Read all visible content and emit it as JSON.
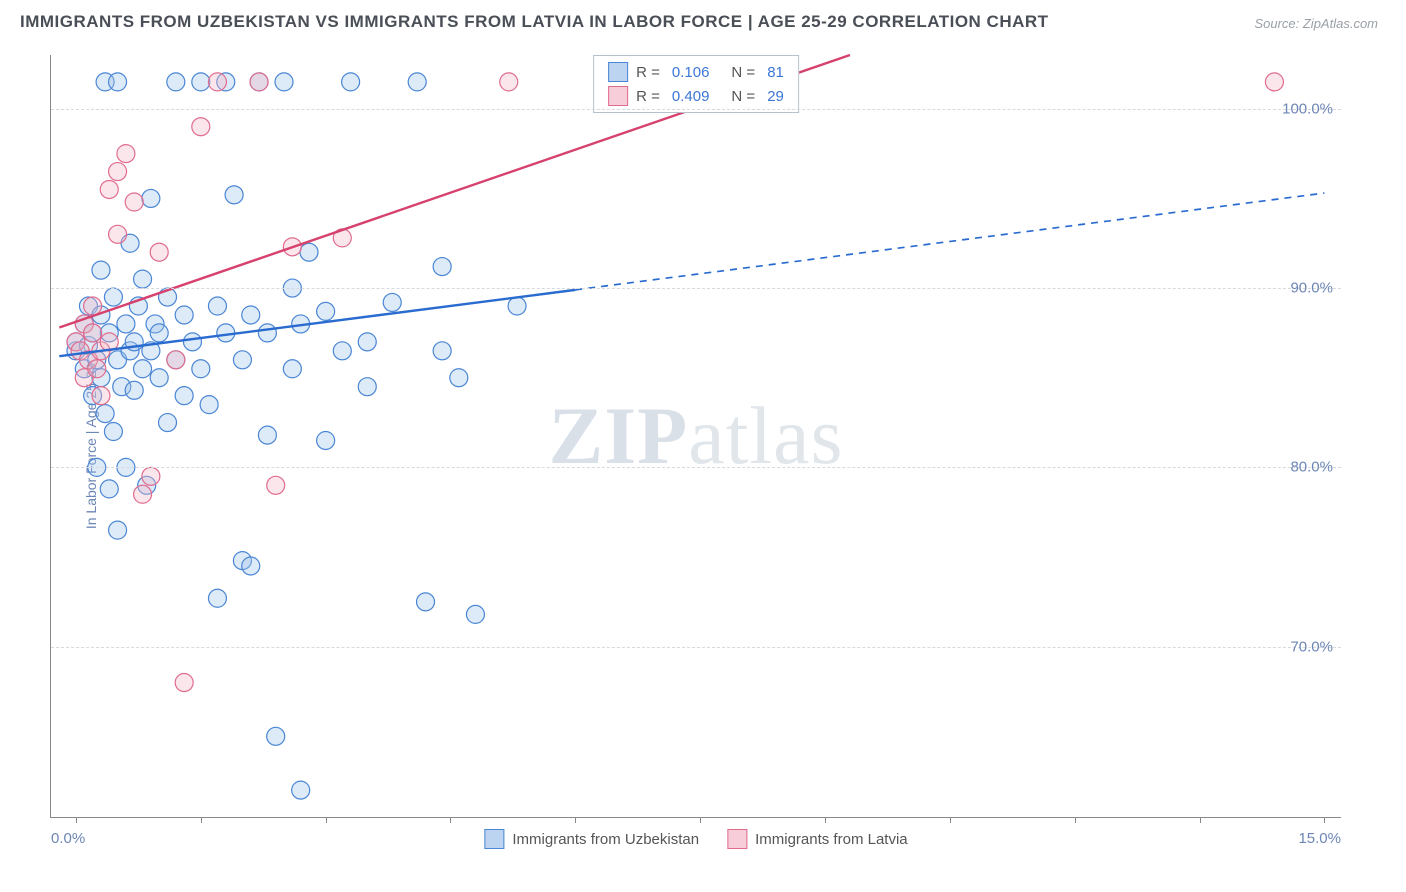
{
  "chart": {
    "type": "scatter",
    "title": "IMMIGRANTS FROM UZBEKISTAN VS IMMIGRANTS FROM LATVIA IN LABOR FORCE | AGE 25-29 CORRELATION CHART",
    "source": "Source: ZipAtlas.com",
    "ylabel": "In Labor Force | Age 25-29",
    "watermark": "ZIPatlas",
    "background_color": "#ffffff",
    "grid_color": "#d7d9dc",
    "axis_color": "#888888",
    "label_color": "#6c86b5",
    "title_color": "#4a4f57",
    "title_fontsize": 17,
    "label_fontsize": 15,
    "xlim": [
      -0.3,
      15.2
    ],
    "ylim": [
      60.5,
      103.0
    ],
    "y_ticks": [
      70.0,
      80.0,
      90.0,
      100.0
    ],
    "y_tick_labels": [
      "70.0%",
      "80.0%",
      "90.0%",
      "100.0%"
    ],
    "x_tick_positions": [
      0.0,
      1.5,
      3.0,
      4.5,
      6.0,
      7.5,
      9.0,
      10.5,
      12.0,
      13.5,
      15.0
    ],
    "x_axis_end_labels": [
      "0.0%",
      "15.0%"
    ],
    "marker_radius": 9,
    "marker_fill_opacity": 0.35,
    "marker_stroke_width": 1.2,
    "line_width": 2.4,
    "series": [
      {
        "name": "Immigrants from Uzbekistan",
        "color_fill": "#9ec2eb",
        "color_stroke": "#4a86d5",
        "line_color": "#2a6bd0",
        "R": "0.106",
        "N": "81",
        "trend": {
          "x1": -0.2,
          "y1": 86.2,
          "x2": 6.0,
          "y2": 89.9,
          "dash_extend_to_x": 15.0,
          "dash_extend_to_y": 95.3
        },
        "points": [
          [
            0.0,
            86.5
          ],
          [
            0.0,
            87.0
          ],
          [
            0.1,
            88.0
          ],
          [
            0.1,
            85.5
          ],
          [
            0.15,
            86.8
          ],
          [
            0.15,
            89.0
          ],
          [
            0.2,
            87.5
          ],
          [
            0.2,
            84.0
          ],
          [
            0.25,
            80.0
          ],
          [
            0.25,
            86.0
          ],
          [
            0.3,
            88.5
          ],
          [
            0.3,
            91.0
          ],
          [
            0.3,
            85.0
          ],
          [
            0.35,
            83.0
          ],
          [
            0.35,
            101.5
          ],
          [
            0.4,
            87.5
          ],
          [
            0.4,
            78.8
          ],
          [
            0.45,
            82.0
          ],
          [
            0.45,
            89.5
          ],
          [
            0.5,
            86.0
          ],
          [
            0.5,
            76.5
          ],
          [
            0.5,
            101.5
          ],
          [
            0.55,
            84.5
          ],
          [
            0.6,
            80.0
          ],
          [
            0.6,
            88.0
          ],
          [
            0.65,
            86.5
          ],
          [
            0.65,
            92.5
          ],
          [
            0.7,
            87.0
          ],
          [
            0.7,
            84.3
          ],
          [
            0.75,
            89.0
          ],
          [
            0.8,
            90.5
          ],
          [
            0.8,
            85.5
          ],
          [
            0.85,
            79.0
          ],
          [
            0.9,
            86.5
          ],
          [
            0.9,
            95.0
          ],
          [
            0.95,
            88.0
          ],
          [
            1.0,
            85.0
          ],
          [
            1.0,
            87.5
          ],
          [
            1.1,
            82.5
          ],
          [
            1.1,
            89.5
          ],
          [
            1.2,
            86.0
          ],
          [
            1.2,
            101.5
          ],
          [
            1.3,
            84.0
          ],
          [
            1.3,
            88.5
          ],
          [
            1.4,
            87.0
          ],
          [
            1.5,
            85.5
          ],
          [
            1.5,
            101.5
          ],
          [
            1.6,
            83.5
          ],
          [
            1.7,
            89.0
          ],
          [
            1.7,
            72.7
          ],
          [
            1.8,
            87.5
          ],
          [
            1.8,
            101.5
          ],
          [
            1.9,
            95.2
          ],
          [
            2.0,
            86.0
          ],
          [
            2.0,
            74.8
          ],
          [
            2.1,
            74.5
          ],
          [
            2.1,
            88.5
          ],
          [
            2.2,
            101.5
          ],
          [
            2.3,
            81.8
          ],
          [
            2.3,
            87.5
          ],
          [
            2.4,
            65.0
          ],
          [
            2.5,
            101.5
          ],
          [
            2.6,
            90.0
          ],
          [
            2.6,
            85.5
          ],
          [
            2.7,
            88.0
          ],
          [
            2.7,
            62.0
          ],
          [
            2.8,
            92.0
          ],
          [
            3.0,
            88.7
          ],
          [
            3.0,
            81.5
          ],
          [
            3.2,
            86.5
          ],
          [
            3.3,
            101.5
          ],
          [
            3.5,
            87.0
          ],
          [
            3.5,
            84.5
          ],
          [
            3.8,
            89.2
          ],
          [
            4.1,
            101.5
          ],
          [
            4.2,
            72.5
          ],
          [
            4.4,
            86.5
          ],
          [
            4.4,
            91.2
          ],
          [
            4.6,
            85.0
          ],
          [
            5.3,
            89.0
          ],
          [
            4.8,
            71.8
          ]
        ]
      },
      {
        "name": "Immigrants from Latvia",
        "color_fill": "#f2b7c6",
        "color_stroke": "#e06c8e",
        "line_color": "#d7416e",
        "R": "0.409",
        "N": "29",
        "trend": {
          "x1": -0.2,
          "y1": 87.8,
          "x2": 9.3,
          "y2": 103.0
        },
        "points": [
          [
            0.0,
            87.0
          ],
          [
            0.05,
            86.5
          ],
          [
            0.1,
            88.0
          ],
          [
            0.1,
            85.0
          ],
          [
            0.15,
            86.0
          ],
          [
            0.2,
            87.5
          ],
          [
            0.2,
            89.0
          ],
          [
            0.25,
            85.5
          ],
          [
            0.3,
            86.5
          ],
          [
            0.3,
            84.0
          ],
          [
            0.4,
            87.0
          ],
          [
            0.4,
            95.5
          ],
          [
            0.5,
            93.0
          ],
          [
            0.5,
            96.5
          ],
          [
            0.6,
            97.5
          ],
          [
            0.7,
            94.8
          ],
          [
            0.8,
            78.5
          ],
          [
            0.9,
            79.5
          ],
          [
            1.0,
            92.0
          ],
          [
            1.2,
            86.0
          ],
          [
            1.3,
            68.0
          ],
          [
            1.5,
            99.0
          ],
          [
            1.7,
            101.5
          ],
          [
            2.2,
            101.5
          ],
          [
            2.4,
            79.0
          ],
          [
            2.6,
            92.3
          ],
          [
            3.2,
            92.8
          ],
          [
            5.2,
            101.5
          ],
          [
            14.4,
            101.5
          ]
        ]
      }
    ],
    "bottom_legend": [
      {
        "label": "Immigrants from Uzbekistan",
        "fill": "#bcd4f0",
        "stroke": "#4a86d5"
      },
      {
        "label": "Immigrants from Latvia",
        "fill": "#f6cdd8",
        "stroke": "#e06c8e"
      }
    ]
  }
}
